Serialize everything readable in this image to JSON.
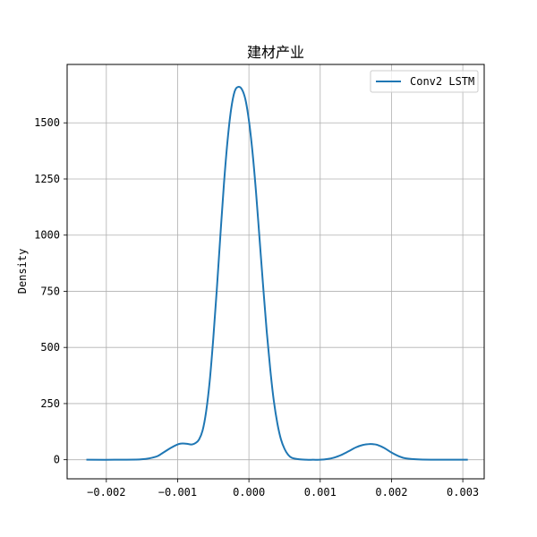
{
  "chart_data": {
    "type": "line",
    "title": "建材产业",
    "xlabel": "",
    "ylabel": "Density",
    "xlim": [
      -0.00255,
      0.0033
    ],
    "ylim": [
      -85,
      1760
    ],
    "x_ticks": [
      -0.002,
      -0.001,
      0.0,
      0.001,
      0.002,
      0.003
    ],
    "x_tick_labels": [
      "−0.002",
      "−0.001",
      "0.000",
      "0.001",
      "0.002",
      "0.003"
    ],
    "y_ticks": [
      0,
      250,
      500,
      750,
      1000,
      1250,
      1500
    ],
    "y_tick_labels": [
      "0",
      "250",
      "500",
      "750",
      "1000",
      "1250",
      "1500"
    ],
    "grid": true,
    "legend_position": "top-right",
    "series": [
      {
        "name": "Conv2 LSTM",
        "color": "#1f77b4",
        "x": [
          -0.00228,
          -0.0018,
          -0.0015,
          -0.0013,
          -0.0012,
          -0.0011,
          -0.001,
          -0.00095,
          -0.0009,
          -0.00085,
          -0.0008,
          -0.00075,
          -0.0007,
          -0.00065,
          -0.0006,
          -0.00055,
          -0.0005,
          -0.00045,
          -0.0004,
          -0.00035,
          -0.0003,
          -0.00025,
          -0.0002,
          -0.00015,
          -0.0001,
          -5e-05,
          0.0,
          5e-05,
          0.0001,
          0.00015,
          0.0002,
          0.00025,
          0.0003,
          0.00035,
          0.0004,
          0.00045,
          0.0005,
          0.00055,
          0.0006,
          0.0007,
          0.0008,
          0.0009,
          0.001,
          0.0011,
          0.0012,
          0.0013,
          0.0014,
          0.0015,
          0.0016,
          0.0017,
          0.00175,
          0.0018,
          0.0019,
          0.002,
          0.0021,
          0.0022,
          0.0024,
          0.0027,
          0.00307
        ],
        "y": [
          0,
          0,
          2,
          14,
          32,
          52,
          68,
          72,
          72,
          70,
          68,
          74,
          90,
          130,
          215,
          350,
          540,
          760,
          1000,
          1230,
          1420,
          1560,
          1640,
          1660,
          1650,
          1605,
          1510,
          1370,
          1190,
          980,
          770,
          570,
          400,
          260,
          160,
          90,
          48,
          22,
          9,
          2,
          0,
          0,
          0,
          3,
          10,
          22,
          38,
          55,
          66,
          70,
          69,
          66,
          52,
          32,
          16,
          6,
          1,
          0,
          0
        ]
      }
    ]
  }
}
